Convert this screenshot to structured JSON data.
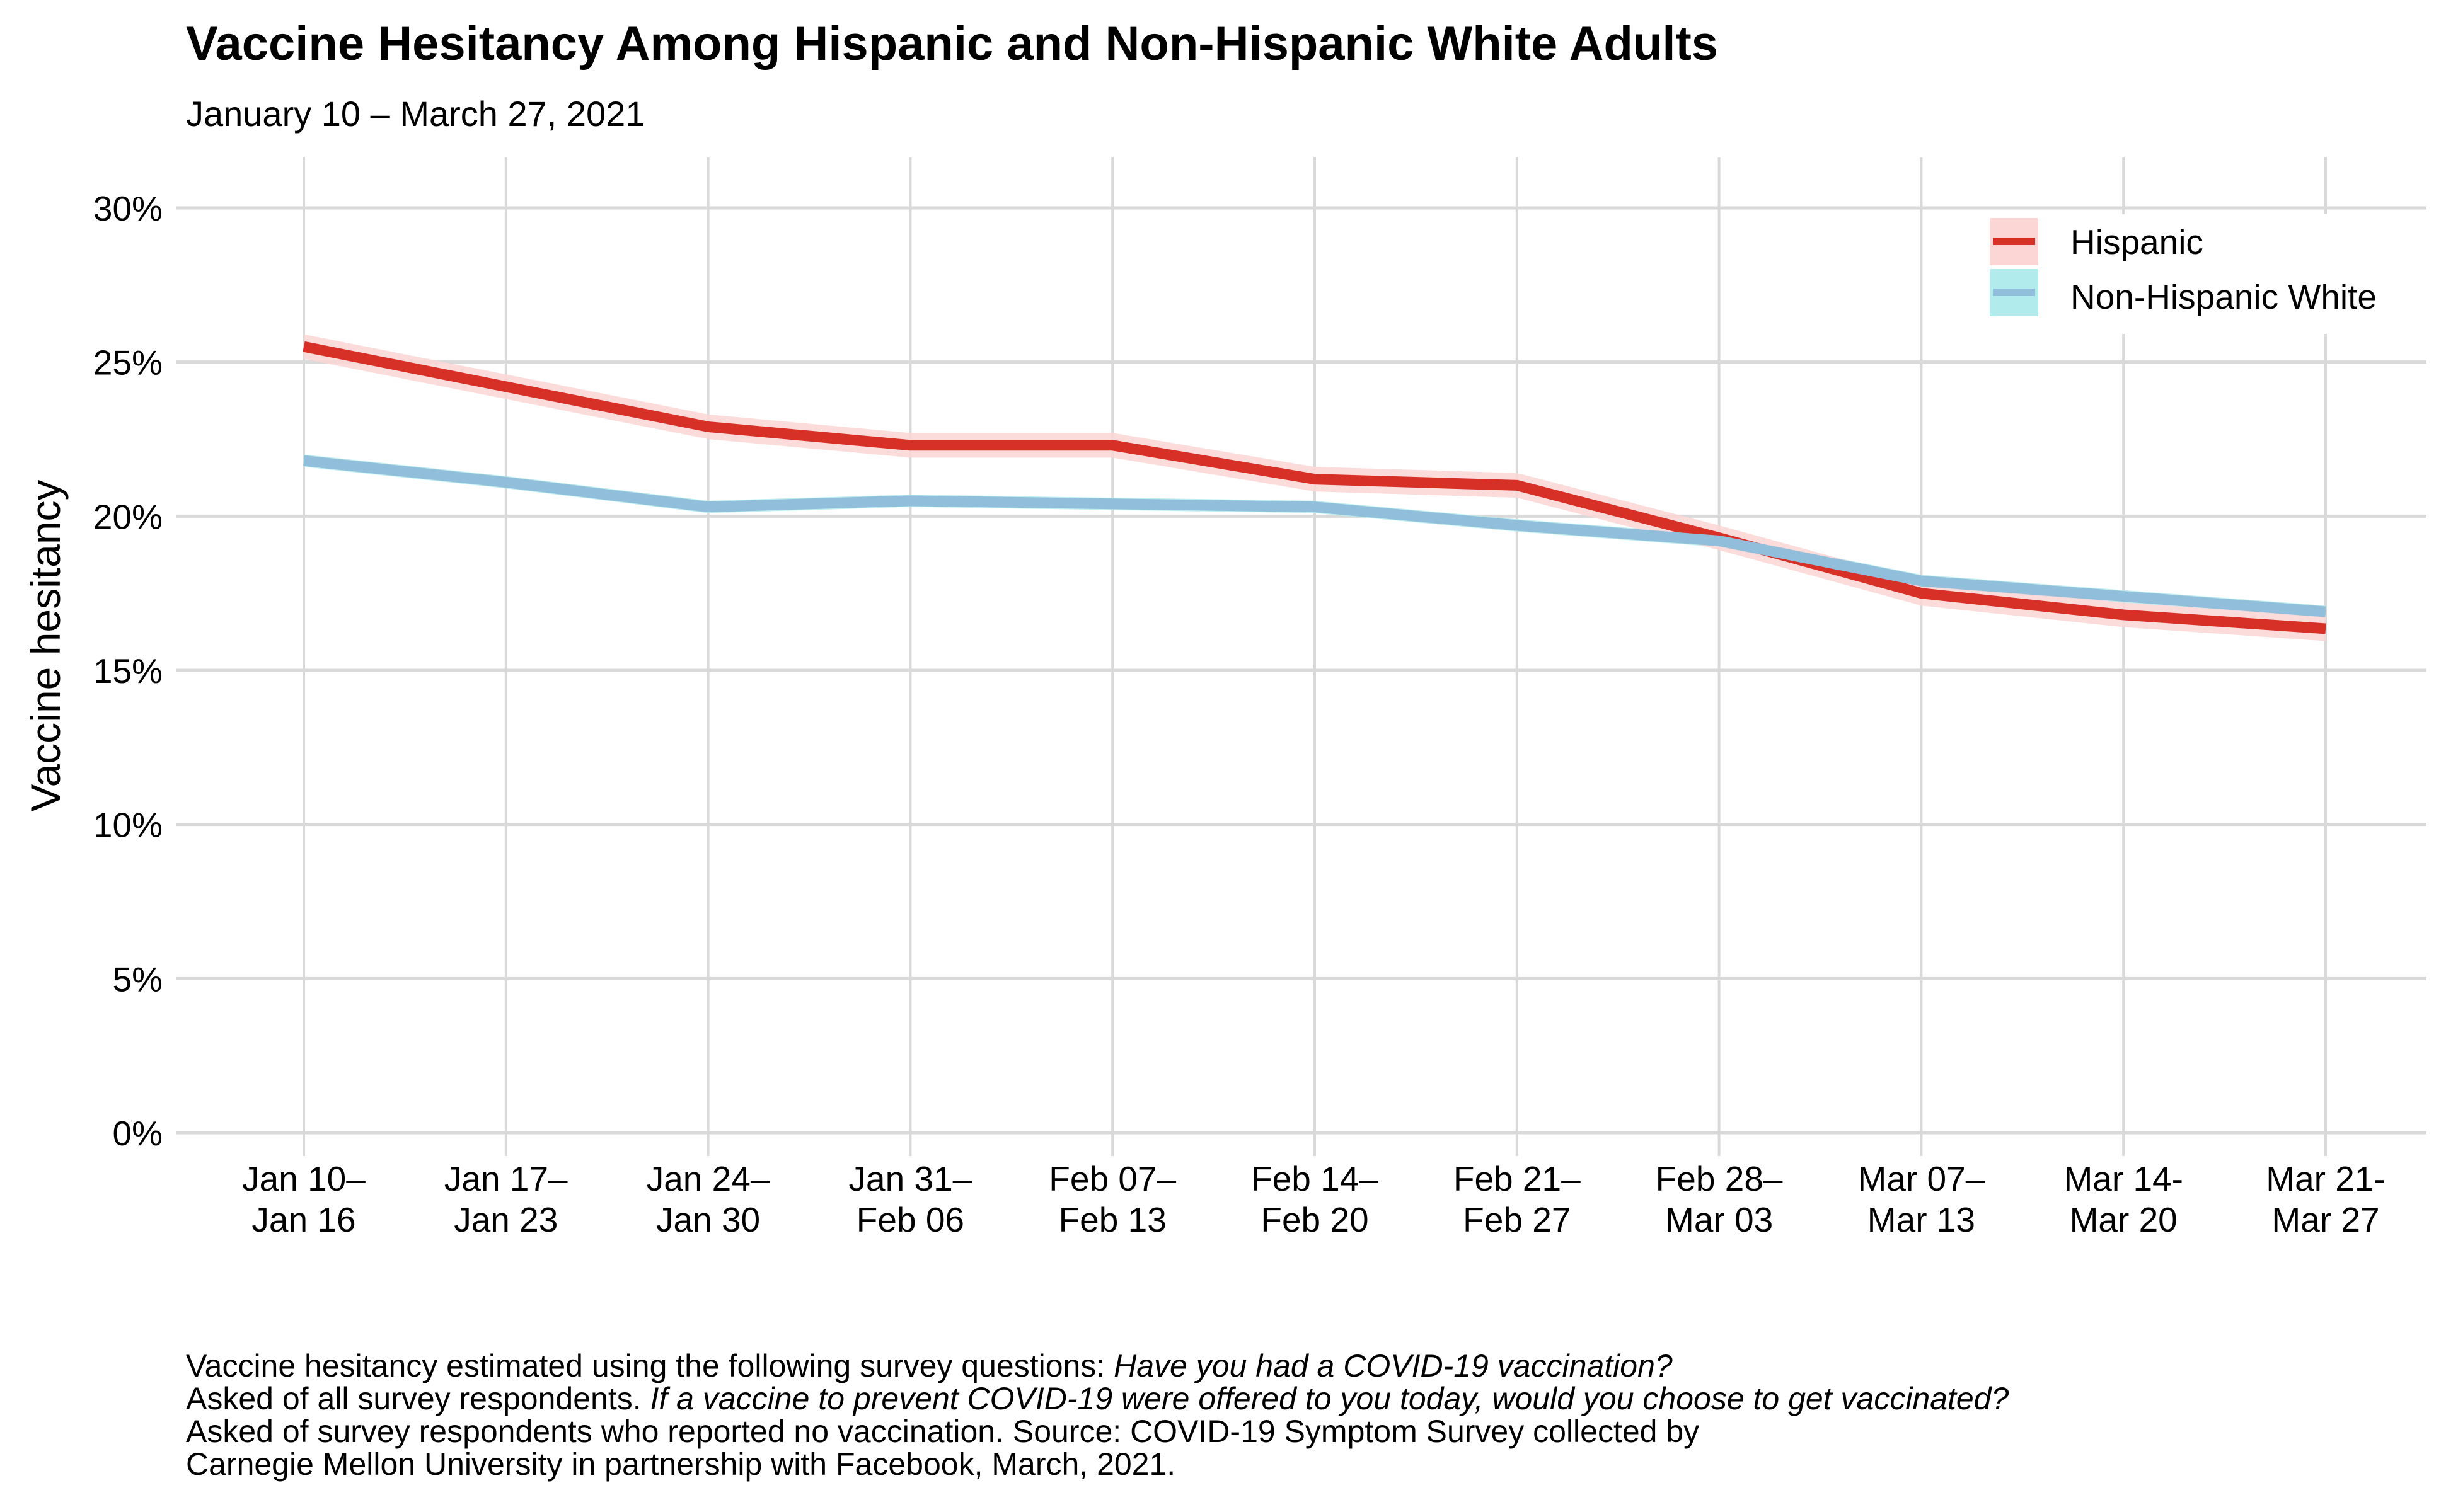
{
  "chart_data": {
    "type": "line",
    "title": "Vaccine Hesitancy Among Hispanic and Non-Hispanic White Adults",
    "subtitle": "January 10 – March 27, 2021",
    "xlabel": "",
    "ylabel": "Vaccine hesitancy",
    "ylim": [
      0,
      30
    ],
    "yticks": [
      "0%",
      "5%",
      "10%",
      "15%",
      "20%",
      "25%",
      "30%"
    ],
    "ytick_values": [
      0,
      5,
      10,
      15,
      20,
      25,
      30
    ],
    "grid": true,
    "legend_position": "top-right",
    "categories": [
      [
        "Jan 10–",
        "Jan 16"
      ],
      [
        "Jan 17–",
        "Jan 23"
      ],
      [
        "Jan 24–",
        "Jan 30"
      ],
      [
        "Jan 31–",
        "Feb 06"
      ],
      [
        "Feb 07–",
        "Feb 13"
      ],
      [
        "Feb 14–",
        "Feb 20"
      ],
      [
        "Feb 21–",
        "Feb 27"
      ],
      [
        "Feb 28–",
        "Mar 03"
      ],
      [
        "Mar 07–",
        "Mar 13"
      ],
      [
        "Mar 14-",
        "Mar 20"
      ],
      [
        "Mar 21-",
        "Mar 27"
      ]
    ],
    "series": [
      {
        "name": "Hispanic",
        "color": "#d73027",
        "ribbon_color": "#fcd5d5",
        "values": [
          25.5,
          24.2,
          22.9,
          22.3,
          22.3,
          21.2,
          21.0,
          19.3,
          17.5,
          16.8,
          16.35
        ],
        "lower": [
          25.1,
          23.8,
          22.5,
          21.9,
          21.9,
          20.8,
          20.6,
          18.9,
          17.1,
          16.4,
          15.95
        ],
        "upper": [
          25.9,
          24.6,
          23.3,
          22.7,
          22.7,
          21.6,
          21.4,
          19.7,
          17.9,
          17.2,
          16.75
        ]
      },
      {
        "name": "Non-Hispanic White",
        "color": "#91bfdb",
        "ribbon_color": "#b2ebeb",
        "values": [
          21.8,
          21.1,
          20.3,
          20.5,
          20.4,
          20.3,
          19.7,
          19.2,
          17.9,
          17.4,
          16.9
        ],
        "lower": [
          21.6,
          20.9,
          20.1,
          20.3,
          20.2,
          20.1,
          19.5,
          19.0,
          17.7,
          17.2,
          16.7
        ],
        "upper": [
          22.0,
          21.3,
          20.5,
          20.7,
          20.6,
          20.5,
          19.9,
          19.4,
          18.1,
          17.6,
          17.1
        ]
      }
    ]
  },
  "caption": {
    "line1_plain": "Vaccine hesitancy estimated using the following survey questions: ",
    "line1_italic": "Have you had a COVID-19 vaccination?",
    "line2_plain": "Asked of all survey respondents. ",
    "line2_italic": "If a vaccine to prevent COVID-19 were offered to you today, would you choose to get vaccinated?",
    "line3": "Asked of survey respondents who reported no vaccination. Source: COVID-19 Symptom Survey collected by",
    "line4": "Carnegie Mellon University in partnership with Facebook, March, 2021."
  }
}
